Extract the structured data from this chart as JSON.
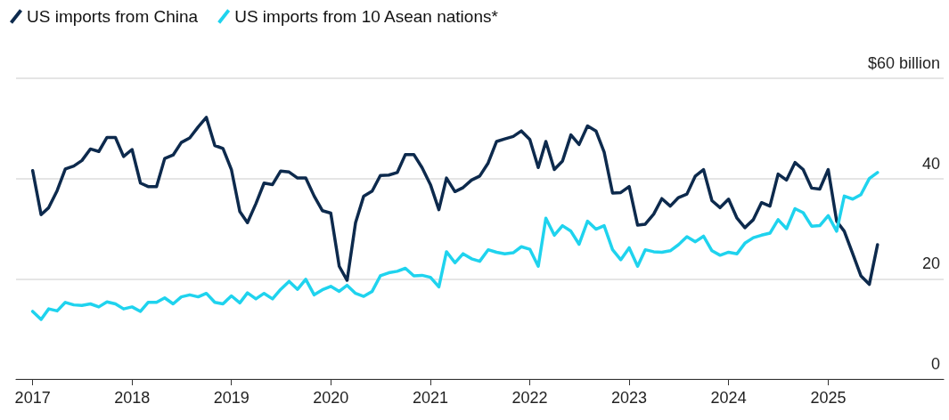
{
  "chart_data": {
    "type": "line",
    "x": [
      "2017-01",
      "2017-02",
      "2017-03",
      "2017-04",
      "2017-05",
      "2017-06",
      "2017-07",
      "2017-08",
      "2017-09",
      "2017-10",
      "2017-11",
      "2017-12",
      "2018-01",
      "2018-02",
      "2018-03",
      "2018-04",
      "2018-05",
      "2018-06",
      "2018-07",
      "2018-08",
      "2018-09",
      "2018-10",
      "2018-11",
      "2018-12",
      "2019-01",
      "2019-02",
      "2019-03",
      "2019-04",
      "2019-05",
      "2019-06",
      "2019-07",
      "2019-08",
      "2019-09",
      "2019-10",
      "2019-11",
      "2019-12",
      "2020-01",
      "2020-02",
      "2020-03",
      "2020-04",
      "2020-05",
      "2020-06",
      "2020-07",
      "2020-08",
      "2020-09",
      "2020-10",
      "2020-11",
      "2020-12",
      "2021-01",
      "2021-02",
      "2021-03",
      "2021-04",
      "2021-05",
      "2021-06",
      "2021-07",
      "2021-08",
      "2021-09",
      "2021-10",
      "2021-11",
      "2021-12",
      "2022-01",
      "2022-02",
      "2022-03",
      "2022-04",
      "2022-05",
      "2022-06",
      "2022-07",
      "2022-08",
      "2022-09",
      "2022-10",
      "2022-11",
      "2022-12",
      "2023-01",
      "2023-02",
      "2023-03",
      "2023-04",
      "2023-05",
      "2023-06",
      "2023-07",
      "2023-08",
      "2023-09",
      "2023-10",
      "2023-11",
      "2023-12",
      "2024-01",
      "2024-02",
      "2024-03",
      "2024-04",
      "2024-05",
      "2024-06",
      "2024-07",
      "2024-08",
      "2024-09",
      "2024-10",
      "2024-11",
      "2024-12",
      "2025-01",
      "2025-02",
      "2025-03",
      "2025-04",
      "2025-05",
      "2025-06",
      "2025-07"
    ],
    "series": [
      {
        "name": "US imports from China",
        "color": "#0d2a4d",
        "values": [
          41.6,
          32.8,
          34.2,
          37.6,
          41.9,
          42.5,
          43.6,
          45.9,
          45.4,
          48.2,
          48.2,
          44.4,
          45.8,
          39.1,
          38.4,
          38.4,
          44.0,
          44.7,
          47.2,
          48.1,
          50.3,
          52.2,
          46.6,
          46.0,
          41.8,
          33.4,
          31.2,
          35.0,
          39.1,
          38.8,
          41.5,
          41.3,
          40.1,
          40.1,
          36.5,
          33.6,
          33.1,
          22.5,
          19.7,
          31.2,
          36.5,
          37.5,
          40.6,
          40.7,
          41.2,
          44.8,
          44.8,
          42.2,
          38.8,
          33.8,
          40.1,
          37.4,
          38.2,
          39.7,
          40.5,
          43.1,
          47.4,
          47.9,
          48.4,
          49.5,
          47.8,
          42.2,
          47.4,
          41.8,
          43.5,
          48.7,
          46.8,
          50.5,
          49.5,
          45.3,
          37.1,
          37.2,
          38.4,
          30.7,
          30.9,
          32.9,
          36.0,
          34.5,
          36.2,
          36.9,
          40.5,
          41.8,
          35.6,
          34.2,
          35.9,
          32.1,
          30.2,
          31.8,
          35.2,
          34.5,
          40.9,
          39.7,
          43.2,
          41.8,
          38.1,
          37.9,
          41.8,
          31.5,
          29.5,
          25.0,
          20.6,
          18.9,
          26.8
        ]
      },
      {
        "name": "US imports from 10 Asean nations*",
        "color": "#1fd3ee",
        "values": [
          13.5,
          11.9,
          14.0,
          13.6,
          15.3,
          14.8,
          14.7,
          15.0,
          14.4,
          15.4,
          15.0,
          14.0,
          14.4,
          13.5,
          15.3,
          15.3,
          16.2,
          15.0,
          16.4,
          16.8,
          16.4,
          17.1,
          15.3,
          15.0,
          16.6,
          15.2,
          17.2,
          16.0,
          17.1,
          16.0,
          17.9,
          19.5,
          17.9,
          19.9,
          16.8,
          17.8,
          18.5,
          17.5,
          18.7,
          17.1,
          16.5,
          17.5,
          20.6,
          21.2,
          21.5,
          22.1,
          20.6,
          20.7,
          20.3,
          18.4,
          25.4,
          23.2,
          25.0,
          24.0,
          23.5,
          25.8,
          25.3,
          25.0,
          25.2,
          26.4,
          25.9,
          22.5,
          32.1,
          28.7,
          30.6,
          29.5,
          26.9,
          31.5,
          29.9,
          30.6,
          25.8,
          23.8,
          26.2,
          22.5,
          25.8,
          25.4,
          25.3,
          25.6,
          26.8,
          28.4,
          27.4,
          28.5,
          25.6,
          24.7,
          25.3,
          25.0,
          27.1,
          28.2,
          28.7,
          29.1,
          31.8,
          30.0,
          34.0,
          33.2,
          30.5,
          30.6,
          32.6,
          29.5,
          36.5,
          35.9,
          36.8,
          40.0,
          41.2
        ]
      }
    ],
    "xlim": [
      "2016-11",
      "2026-03"
    ],
    "xticks": [
      "2017",
      "2018",
      "2019",
      "2020",
      "2021",
      "2022",
      "2023",
      "2024",
      "2025"
    ],
    "ylim": [
      0,
      60
    ],
    "yticks": [
      0,
      20,
      40,
      {
        "value": 60,
        "label": "$60 billion"
      }
    ],
    "grid": "y",
    "legend": "top left",
    "marker": "none",
    "line_style": "solid"
  }
}
